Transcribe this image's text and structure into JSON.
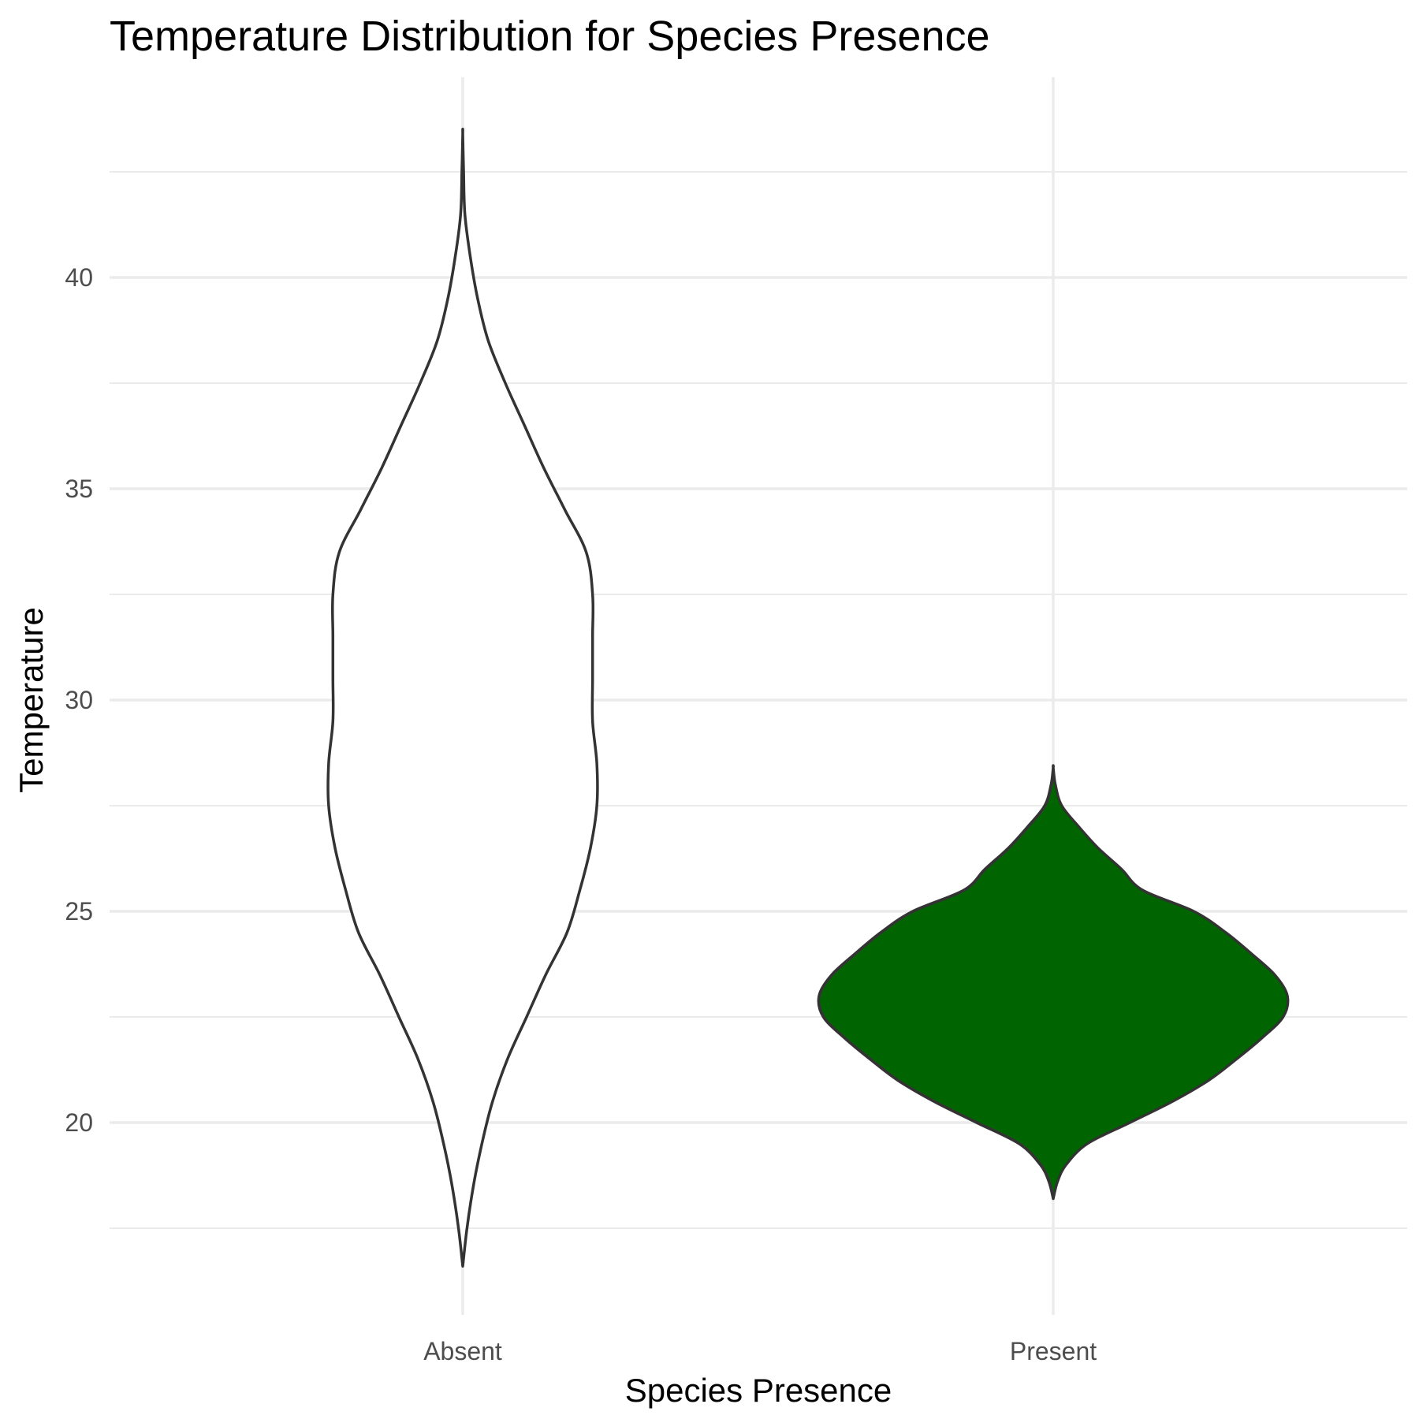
{
  "chart_data": {
    "type": "violin",
    "title": "Temperature Distribution for Species Presence",
    "xlabel": "Species Presence",
    "ylabel": "Temperature",
    "categories": [
      "Absent",
      "Present"
    ],
    "yticks": [
      20,
      25,
      30,
      35,
      40
    ],
    "ylim": [
      15.6,
      44.4
    ],
    "grid": true,
    "legend": "none",
    "series": [
      {
        "category": "Absent",
        "fill": "#ffffff",
        "stroke": "#333333",
        "range": [
          16.6,
          43.4
        ],
        "density_profile": [
          [
            16.6,
            0.0
          ],
          [
            17.5,
            0.02
          ],
          [
            18.5,
            0.05
          ],
          [
            19.5,
            0.09
          ],
          [
            20.5,
            0.14
          ],
          [
            21.5,
            0.21
          ],
          [
            22.5,
            0.3
          ],
          [
            23.5,
            0.39
          ],
          [
            24.5,
            0.49
          ],
          [
            25.5,
            0.55
          ],
          [
            26.5,
            0.6
          ],
          [
            27.5,
            0.63
          ],
          [
            28.5,
            0.63
          ],
          [
            29.5,
            0.61
          ],
          [
            30.5,
            0.61
          ],
          [
            31.5,
            0.61
          ],
          [
            32.5,
            0.61
          ],
          [
            33.5,
            0.58
          ],
          [
            34.5,
            0.48
          ],
          [
            35.5,
            0.38
          ],
          [
            36.5,
            0.29
          ],
          [
            37.5,
            0.2
          ],
          [
            38.5,
            0.12
          ],
          [
            39.5,
            0.07
          ],
          [
            40.5,
            0.035
          ],
          [
            41.5,
            0.01
          ],
          [
            42.5,
            0.004
          ],
          [
            43.4,
            0.0
          ]
        ]
      },
      {
        "category": "Present",
        "fill": "#006400",
        "stroke": "#333333",
        "range": [
          18.2,
          28.4
        ],
        "density_profile": [
          [
            18.2,
            0.0
          ],
          [
            18.6,
            0.02
          ],
          [
            19.0,
            0.06
          ],
          [
            19.5,
            0.16
          ],
          [
            20.0,
            0.36
          ],
          [
            20.5,
            0.56
          ],
          [
            21.0,
            0.73
          ],
          [
            21.5,
            0.86
          ],
          [
            22.0,
            0.98
          ],
          [
            22.5,
            1.08
          ],
          [
            23.0,
            1.1
          ],
          [
            23.5,
            1.04
          ],
          [
            24.0,
            0.93
          ],
          [
            24.5,
            0.81
          ],
          [
            25.0,
            0.66
          ],
          [
            25.5,
            0.42
          ],
          [
            26.0,
            0.32
          ],
          [
            26.5,
            0.21
          ],
          [
            27.0,
            0.12
          ],
          [
            27.5,
            0.04
          ],
          [
            28.0,
            0.01
          ],
          [
            28.4,
            0.0
          ]
        ]
      }
    ]
  }
}
